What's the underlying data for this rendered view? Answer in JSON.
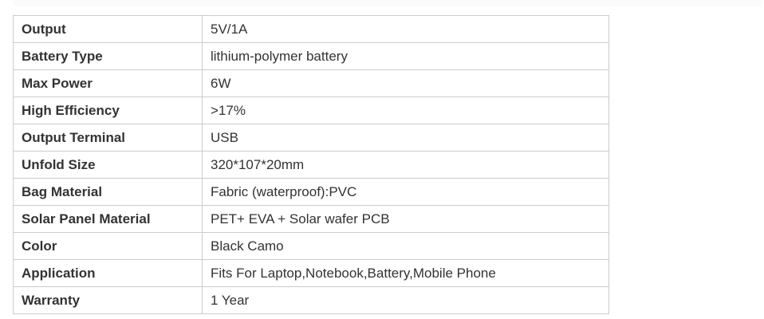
{
  "specs": [
    {
      "label": "Output",
      "value": "5V/1A"
    },
    {
      "label": "Battery Type",
      "value": "lithium-polymer battery"
    },
    {
      "label": "Max Power",
      "value": "6W"
    },
    {
      "label": "High Efficiency",
      "value": ">17%"
    },
    {
      "label": "Output Terminal",
      "value": "USB"
    },
    {
      "label": "Unfold Size",
      "value": "320*107*20mm"
    },
    {
      "label": "Bag Material",
      "value": "Fabric (waterproof):PVC"
    },
    {
      "label": "Solar Panel Material",
      "value": "PET+ EVA + Solar wafer PCB"
    },
    {
      "label": "Color",
      "value": "Black Camo"
    },
    {
      "label": "Application",
      "value": "Fits For Laptop,Notebook,Battery,Mobile Phone"
    },
    {
      "label": "Warranty",
      "value": "1 Year"
    }
  ]
}
